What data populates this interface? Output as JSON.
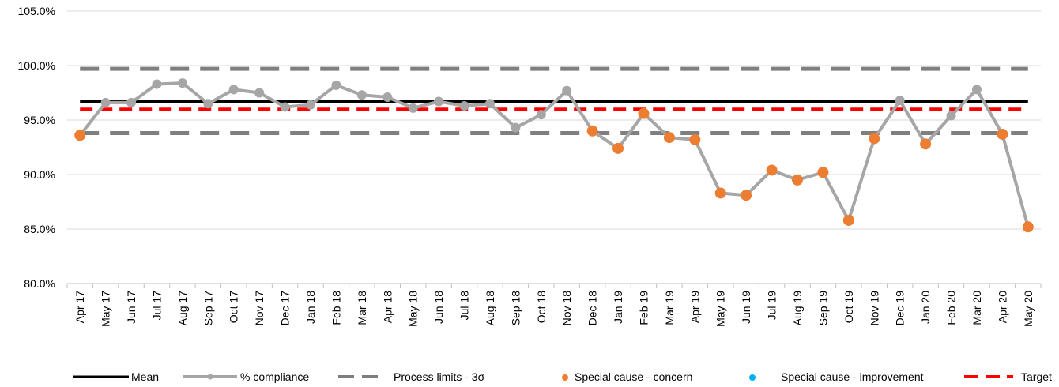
{
  "chart_data": {
    "type": "line",
    "categories": [
      "Apr 17",
      "May 17",
      "Jun 17",
      "Jul 17",
      "Aug 17",
      "Sep 17",
      "Oct 17",
      "Nov 17",
      "Dec 17",
      "Jan 18",
      "Feb 18",
      "Mar 18",
      "Apr 18",
      "May 18",
      "Jun 18",
      "Jul 18",
      "Aug 18",
      "Sep 18",
      "Oct 18",
      "Nov 18",
      "Dec 18",
      "Jan 19",
      "Feb 19",
      "Mar 19",
      "Apr 19",
      "May 19",
      "Jun 19",
      "Jul 19",
      "Aug 19",
      "Sep 19",
      "Oct 19",
      "Nov 19",
      "Dec 19",
      "Jan 20",
      "Feb 20",
      "Mar 20",
      "Apr 20",
      "May 20"
    ],
    "ylim": [
      80,
      105
    ],
    "yticks": [
      80,
      85,
      90,
      95,
      100,
      105
    ],
    "ytick_labels": [
      "80.0%",
      "85.0%",
      "90.0%",
      "95.0%",
      "100.0%",
      "105.0%"
    ],
    "compliance": {
      "name": "% compliance",
      "color": "#a6a6a6",
      "values": [
        93.6,
        96.6,
        96.6,
        98.3,
        98.4,
        96.5,
        97.8,
        97.5,
        96.2,
        96.4,
        98.2,
        97.3,
        97.1,
        96.1,
        96.7,
        96.3,
        96.5,
        94.3,
        95.5,
        97.7,
        94.0,
        92.4,
        95.6,
        93.4,
        93.2,
        88.3,
        88.1,
        90.4,
        89.5,
        90.2,
        85.8,
        93.3,
        96.8,
        92.8,
        95.4,
        97.8,
        93.7,
        85.2
      ]
    },
    "special_cause_concern": {
      "name": "Special cause - concern",
      "color": "#ed7d31",
      "indices": [
        0,
        20,
        21,
        22,
        23,
        24,
        25,
        26,
        27,
        28,
        29,
        30,
        31,
        33,
        36,
        37
      ]
    },
    "special_cause_improvement": {
      "name": "Special cause  - improvement",
      "color": "#00b0f0",
      "indices": []
    },
    "mean": {
      "name": "Mean",
      "value": 96.7,
      "color": "#000000"
    },
    "process_limits": {
      "name": "Process limits - 3σ",
      "upper": 99.7,
      "lower": 93.8,
      "color": "#7f7f7f"
    },
    "target": {
      "name": "Target",
      "value": 96.0,
      "color": "#ff0000"
    },
    "grid": true,
    "legend_position": "bottom"
  }
}
